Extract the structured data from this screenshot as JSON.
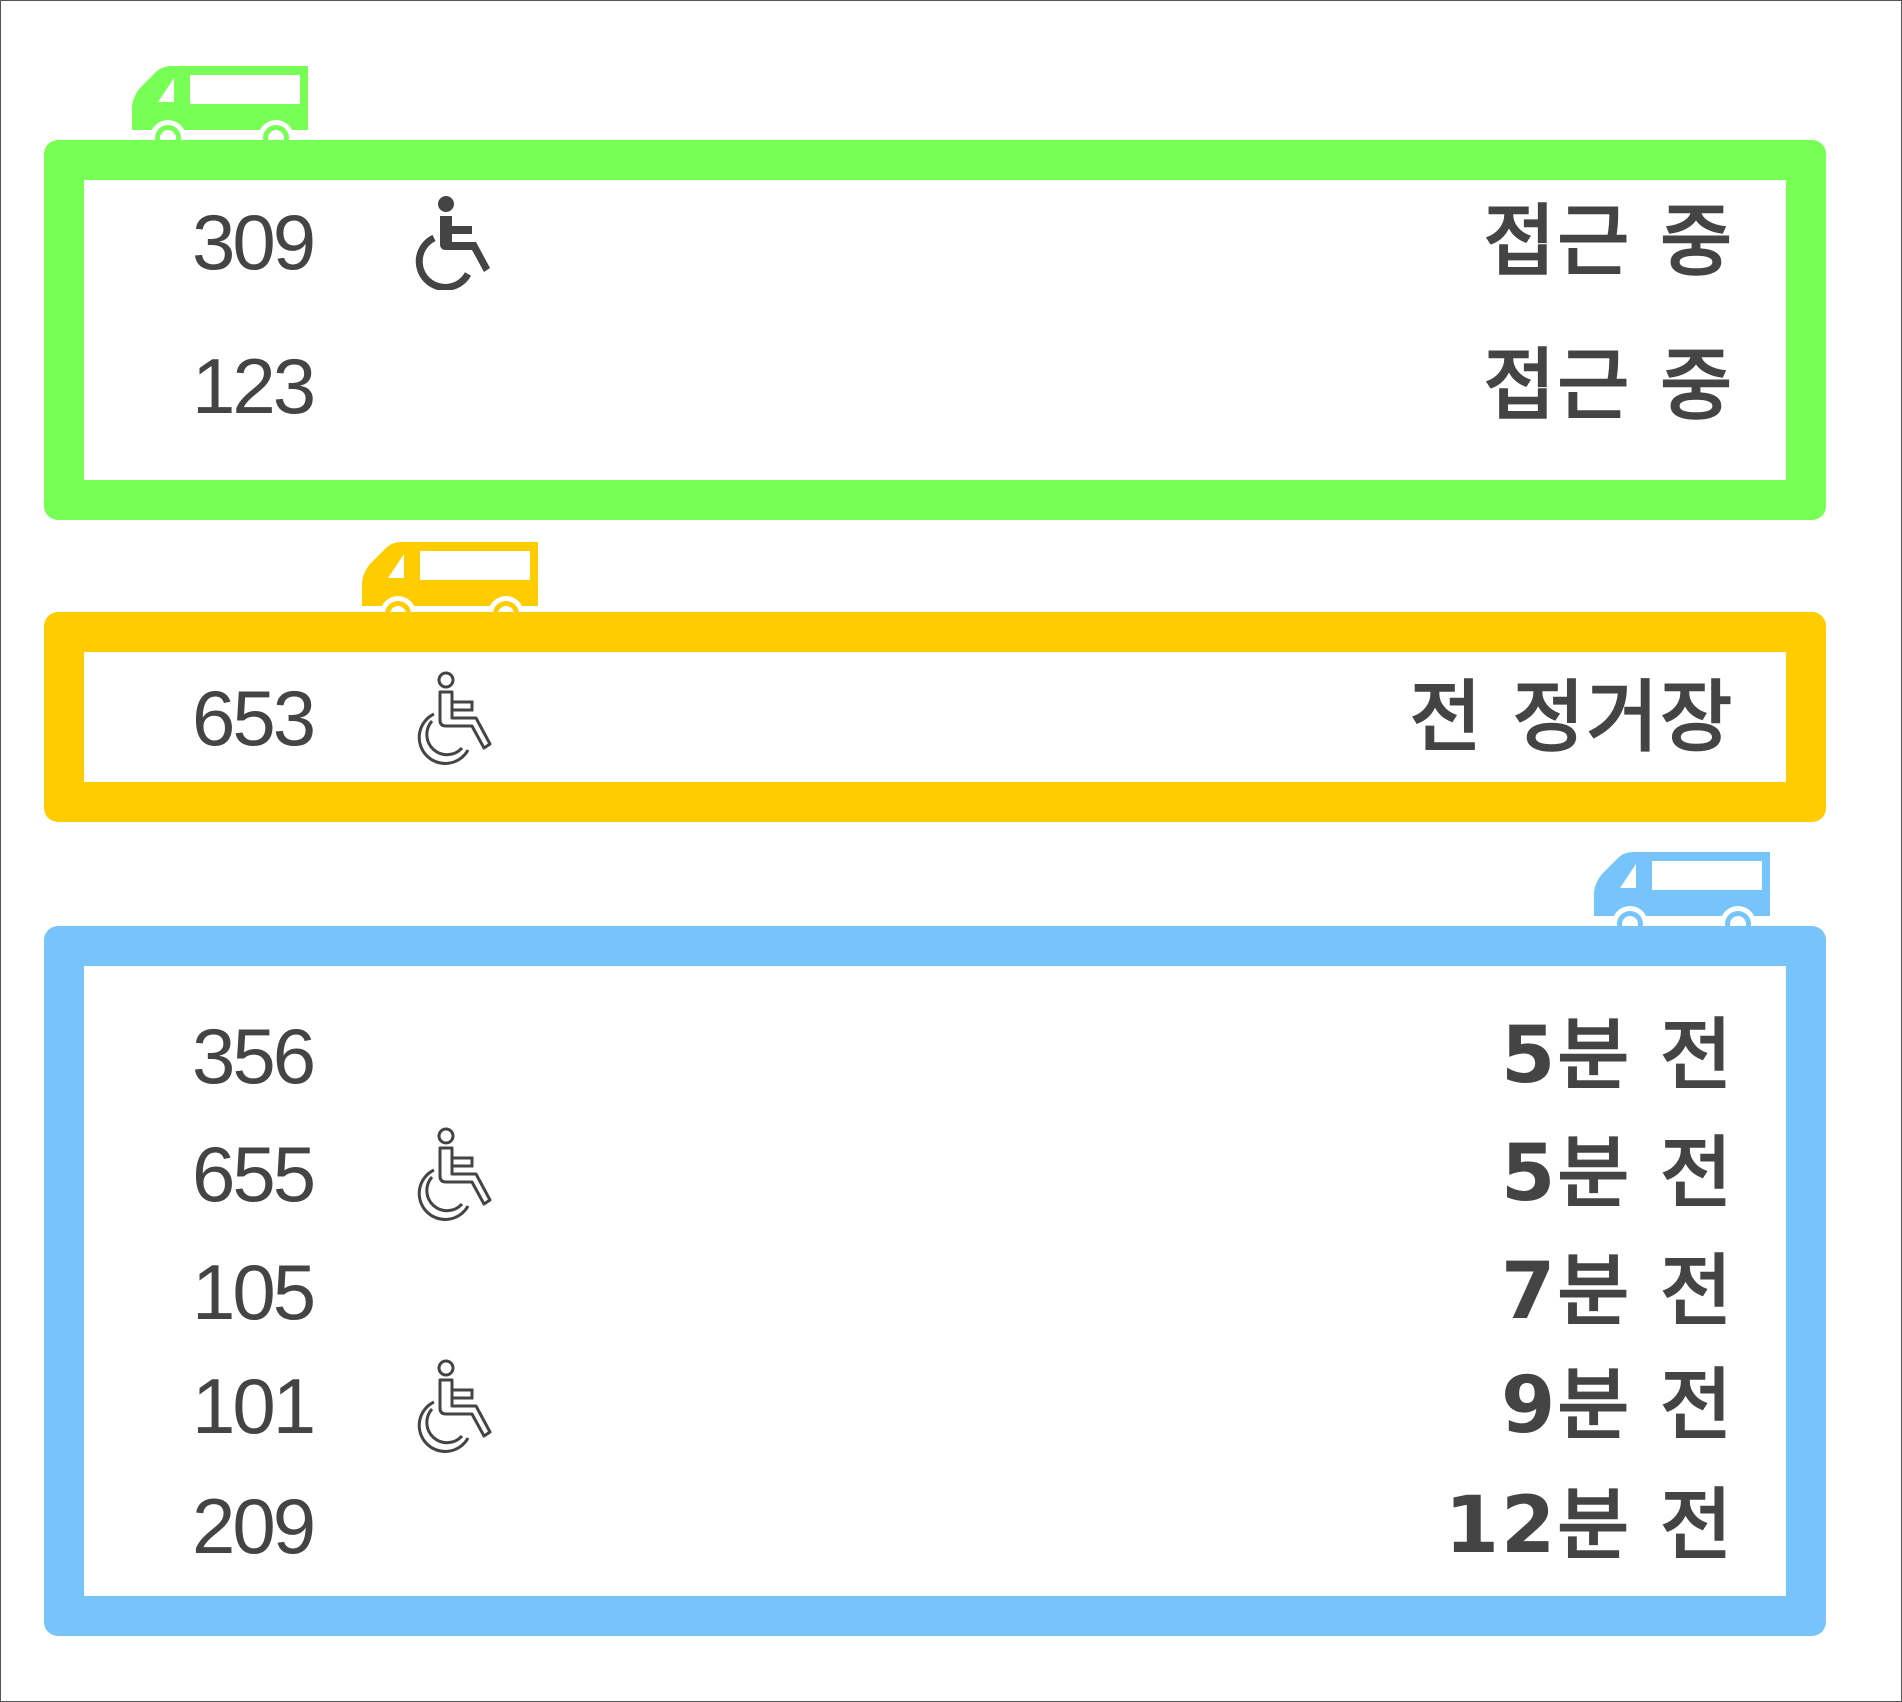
{
  "colors": {
    "approaching": "#77ff55",
    "previous_stop": "#ffcc00",
    "scheduled": "#77c4fb",
    "text": "#444444"
  },
  "groups": [
    {
      "color": "#77ff55",
      "icon": "bus-icon",
      "rows": [
        {
          "number": "309",
          "wheelchair": "wheelchair-filled-icon",
          "status": "접근 중"
        },
        {
          "number": "123",
          "wheelchair": null,
          "status": "접근 중"
        }
      ]
    },
    {
      "color": "#ffcc00",
      "icon": "bus-icon",
      "rows": [
        {
          "number": "653",
          "wheelchair": "wheelchair-outline-icon",
          "status": "전 정거장"
        }
      ]
    },
    {
      "color": "#77c4fb",
      "icon": "bus-icon",
      "rows": [
        {
          "number": "356",
          "wheelchair": null,
          "status": "5분 전"
        },
        {
          "number": "655",
          "wheelchair": "wheelchair-outline-icon",
          "status": "5분 전"
        },
        {
          "number": "105",
          "wheelchair": null,
          "status": "7분 전"
        },
        {
          "number": "101",
          "wheelchair": "wheelchair-outline-icon",
          "status": "9분 전"
        },
        {
          "number": "209",
          "wheelchair": null,
          "status": "12분 전"
        }
      ]
    }
  ]
}
